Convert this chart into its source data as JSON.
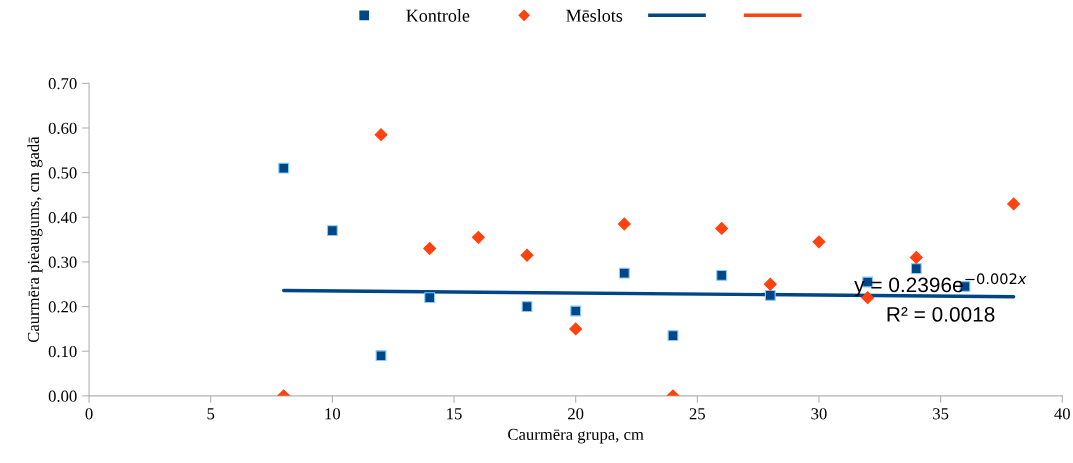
{
  "chart_data": {
    "type": "scatter",
    "xlabel": "Caurmēra grupa, cm",
    "ylabel": "Caurmēra pieaugums, cm gadā",
    "series": [
      {
        "name": "Kontrole",
        "color": "#004586",
        "marker": "square",
        "x": [
          8,
          10,
          12,
          14,
          18,
          20,
          22,
          24,
          26,
          28,
          32,
          34,
          36
        ],
        "values": [
          0.51,
          0.37,
          0.09,
          0.22,
          0.2,
          0.19,
          0.275,
          0.135,
          0.27,
          0.225,
          0.255,
          0.285,
          0.245
        ]
      },
      {
        "name": "Mēslots",
        "color": "#ff420e",
        "marker": "diamond",
        "x": [
          8,
          12,
          14,
          16,
          18,
          20,
          22,
          24,
          26,
          28,
          30,
          32,
          34,
          38
        ],
        "values": [
          0,
          0.585,
          0.33,
          0.355,
          0.315,
          0.15,
          0.385,
          0,
          0.375,
          0.25,
          0.345,
          0.22,
          0.31,
          0.43
        ]
      },
      {
        "type": "line",
        "color": "#004586",
        "x": [
          8,
          38
        ],
        "values": [
          0.236,
          0.222
        ]
      },
      {
        "type": "line",
        "color": "#ff420e"
      }
    ],
    "xlim": [
      0,
      40
    ],
    "xticks": [
      0,
      5,
      10,
      15,
      20,
      25,
      30,
      35,
      40
    ],
    "ylim": [
      0,
      0.7
    ],
    "yticks": [
      {
        "value": 0,
        "label": "0.00"
      },
      {
        "value": 0.1,
        "label": "0.10"
      },
      {
        "value": 0.2,
        "label": "0.20"
      },
      {
        "value": 0.3,
        "label": "0.30"
      },
      {
        "value": 0.4,
        "label": "0.40"
      },
      {
        "value": 0.5,
        "label": "0.50"
      },
      {
        "value": 0.6,
        "label": "0.60"
      },
      {
        "value": 0.7,
        "label": "0.70"
      }
    ],
    "annotations": [
      "y = 0.2396e$^{−0.002x}$",
      "R² = 0.0018"
    ],
    "legend": "top",
    "grid": false
  }
}
